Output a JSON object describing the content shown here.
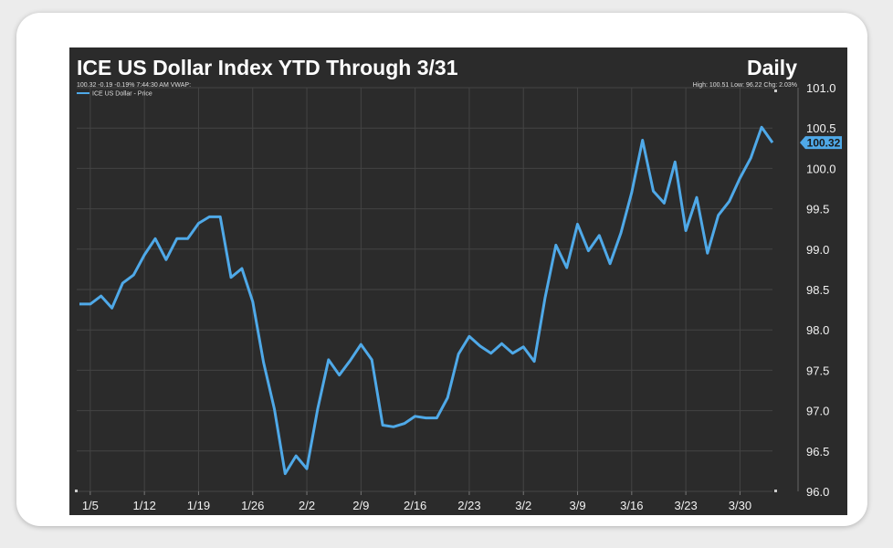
{
  "chart_data": {
    "type": "line",
    "title": "ICE US Dollar Index YTD Through 3/31",
    "frequency": "Daily",
    "quote_line": "100.32 -0.19 -0.19% 7:44:30 AM VWAP:",
    "stats_line": "High: 100.51 Low: 96.22 Chg: 2.03%",
    "legend": "ICE US Dollar - Price",
    "last_value_label": "100.32",
    "ylim": [
      96.0,
      101.0
    ],
    "y_ticks": [
      "96.0",
      "96.5",
      "97.0",
      "97.5",
      "98.0",
      "98.5",
      "99.0",
      "99.5",
      "100.0",
      "100.5",
      "101.0"
    ],
    "x_ticks": [
      "1/5",
      "1/12",
      "1/19",
      "1/26",
      "2/2",
      "2/9",
      "2/16",
      "2/23",
      "3/2",
      "3/9",
      "3/16",
      "3/23",
      "3/30"
    ],
    "series": [
      {
        "name": "ICE US Dollar - Price",
        "values": [
          98.32,
          98.32,
          98.42,
          98.27,
          98.58,
          98.68,
          98.93,
          99.13,
          98.87,
          99.13,
          99.13,
          99.32,
          99.4,
          99.4,
          98.65,
          98.76,
          98.35,
          97.6,
          97.02,
          96.22,
          96.44,
          96.28,
          97.02,
          97.63,
          97.44,
          97.62,
          97.82,
          97.63,
          96.82,
          96.8,
          96.84,
          96.93,
          96.91,
          96.91,
          97.16,
          97.7,
          97.92,
          97.8,
          97.71,
          97.83,
          97.71,
          97.79,
          97.61,
          98.4,
          99.05,
          98.77,
          99.31,
          98.98,
          99.17,
          98.82,
          99.2,
          99.7,
          100.35,
          99.72,
          99.57,
          100.08,
          99.23,
          99.64,
          98.95,
          99.42,
          99.59,
          99.88,
          100.13,
          100.51,
          100.32
        ],
        "color": "#4fa9e8"
      }
    ]
  }
}
